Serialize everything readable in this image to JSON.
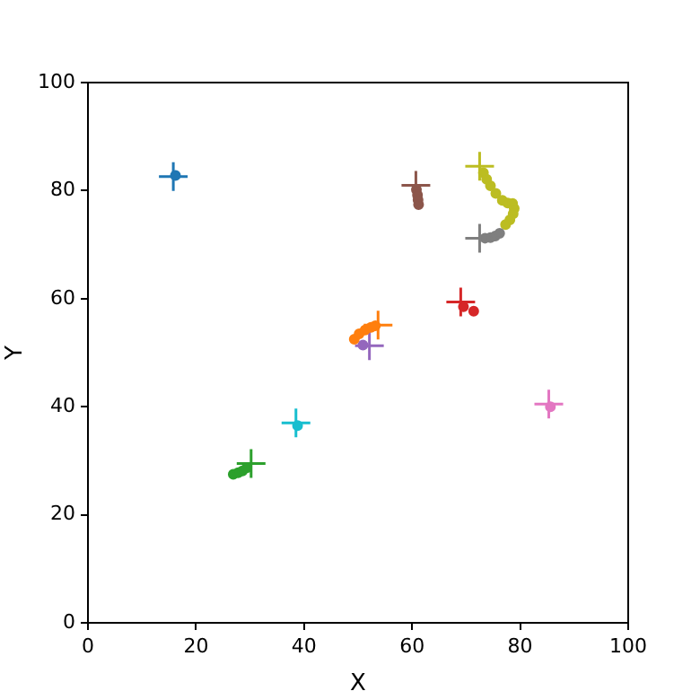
{
  "chart_data": {
    "type": "scatter",
    "xlabel": "X",
    "ylabel": "Y",
    "xlim": [
      0,
      100
    ],
    "ylim": [
      0,
      100
    ],
    "xticks": [
      0,
      20,
      40,
      60,
      80,
      100
    ],
    "yticks": [
      0,
      20,
      40,
      60,
      80,
      100
    ],
    "grid": false,
    "legend": false,
    "series": [
      {
        "color": "#1f77b4",
        "marker": "circle",
        "x": [
          16.2
        ],
        "values": [
          82.8
        ]
      },
      {
        "color": "#ff7f0e",
        "marker": "circle",
        "x": [
          49.3,
          50.2,
          51.3,
          52.4,
          53.2
        ],
        "values": [
          52.5,
          53.5,
          54.2,
          54.7,
          55.0
        ]
      },
      {
        "color": "#2ca02c",
        "marker": "circle",
        "x": [
          26.9,
          27.8,
          28.6,
          29.4
        ],
        "values": [
          27.5,
          27.8,
          28.1,
          28.7
        ]
      },
      {
        "color": "#d62728",
        "marker": "circle",
        "x": [
          69.5,
          71.4
        ],
        "values": [
          58.5,
          57.7
        ]
      },
      {
        "color": "#9467bd",
        "marker": "circle",
        "x": [
          50.9
        ],
        "values": [
          51.4
        ]
      },
      {
        "color": "#8c564b",
        "marker": "circle",
        "x": [
          60.8,
          61.0,
          61.1,
          61.2
        ],
        "values": [
          80.2,
          79.2,
          78.3,
          77.4
        ]
      },
      {
        "color": "#e377c2",
        "marker": "circle",
        "x": [
          85.6
        ],
        "values": [
          40.0
        ]
      },
      {
        "color": "#7f7f7f",
        "marker": "circle",
        "x": [
          73.5,
          74.5,
          75.4,
          76.2
        ],
        "values": [
          71.2,
          71.3,
          71.6,
          72.1
        ]
      },
      {
        "color": "#bcbd22",
        "marker": "circle",
        "x": [
          73.2,
          73.8,
          74.5,
          75.5,
          76.7,
          77.7,
          78.6,
          78.9,
          78.7,
          78.1,
          77.3
        ],
        "values": [
          83.3,
          82.1,
          80.9,
          79.5,
          78.2,
          77.7,
          77.6,
          76.7,
          75.7,
          74.6,
          73.7
        ]
      },
      {
        "color": "#17becf",
        "marker": "circle",
        "x": [
          38.8
        ],
        "values": [
          36.5
        ]
      },
      {
        "color": "#1f77b4",
        "marker": "cross",
        "x": [
          15.8
        ],
        "values": [
          82.6
        ]
      },
      {
        "color": "#ff7f0e",
        "marker": "cross",
        "x": [
          53.7
        ],
        "values": [
          55.1
        ]
      },
      {
        "color": "#2ca02c",
        "marker": "cross",
        "x": [
          30.2
        ],
        "values": [
          29.5
        ]
      },
      {
        "color": "#d62728",
        "marker": "cross",
        "x": [
          69.0
        ],
        "values": [
          59.4
        ]
      },
      {
        "color": "#9467bd",
        "marker": "cross",
        "x": [
          52.1
        ],
        "values": [
          51.3
        ]
      },
      {
        "color": "#8c564b",
        "marker": "cross",
        "x": [
          60.7
        ],
        "values": [
          81.0
        ]
      },
      {
        "color": "#e377c2",
        "marker": "cross",
        "x": [
          85.3
        ],
        "values": [
          40.5
        ]
      },
      {
        "color": "#7f7f7f",
        "marker": "cross",
        "x": [
          72.5
        ],
        "values": [
          71.2
        ]
      },
      {
        "color": "#bcbd22",
        "marker": "cross",
        "x": [
          72.5
        ],
        "values": [
          84.5
        ]
      },
      {
        "color": "#17becf",
        "marker": "cross",
        "x": [
          38.5
        ],
        "values": [
          37.0
        ]
      }
    ]
  }
}
